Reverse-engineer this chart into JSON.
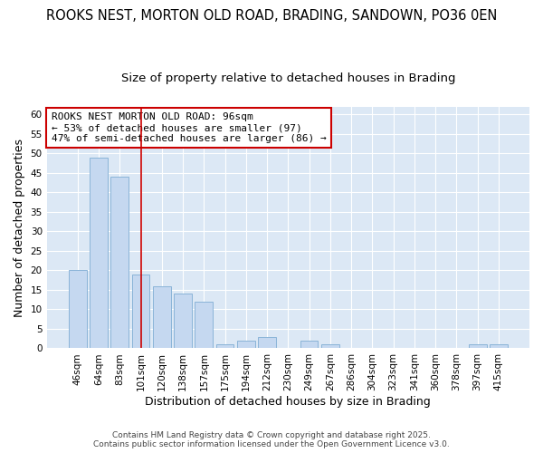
{
  "title1": "ROOKS NEST, MORTON OLD ROAD, BRADING, SANDOWN, PO36 0EN",
  "title2": "Size of property relative to detached houses in Brading",
  "xlabel": "Distribution of detached houses by size in Brading",
  "ylabel": "Number of detached properties",
  "categories": [
    "46sqm",
    "64sqm",
    "83sqm",
    "101sqm",
    "120sqm",
    "138sqm",
    "157sqm",
    "175sqm",
    "194sqm",
    "212sqm",
    "230sqm",
    "249sqm",
    "267sqm",
    "286sqm",
    "304sqm",
    "323sqm",
    "341sqm",
    "360sqm",
    "378sqm",
    "397sqm",
    "415sqm"
  ],
  "values": [
    20,
    49,
    44,
    19,
    16,
    14,
    12,
    1,
    2,
    3,
    0,
    2,
    1,
    0,
    0,
    0,
    0,
    0,
    0,
    1,
    1
  ],
  "bar_color": "#c5d8f0",
  "bar_edge_color": "#8ab4d8",
  "highlight_line_index": 3,
  "highlight_line_color": "#cc0000",
  "ylim": [
    0,
    62
  ],
  "yticks": [
    0,
    5,
    10,
    15,
    20,
    25,
    30,
    35,
    40,
    45,
    50,
    55,
    60
  ],
  "annotation_text": "ROOKS NEST MORTON OLD ROAD: 96sqm\n← 53% of detached houses are smaller (97)\n47% of semi-detached houses are larger (86) →",
  "annotation_box_color": "#ffffff",
  "annotation_box_edge": "#cc0000",
  "footer_line1": "Contains HM Land Registry data © Crown copyright and database right 2025.",
  "footer_line2": "Contains public sector information licensed under the Open Government Licence v3.0.",
  "fig_bg_color": "#ffffff",
  "axes_bg_color": "#dce8f5",
  "grid_color": "#ffffff",
  "title_fontsize": 10.5,
  "subtitle_fontsize": 9.5,
  "axis_label_fontsize": 9,
  "tick_fontsize": 7.5,
  "annotation_fontsize": 8,
  "footer_fontsize": 6.5
}
